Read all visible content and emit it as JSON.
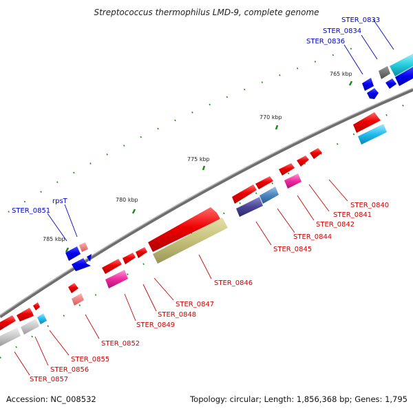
{
  "title": "Streptococcus thermophilus LMD-9, complete genome",
  "footer": {
    "accession": "Accession: NC_008532",
    "summary": "Topology: circular; Length: 1,856,368 bp; Genes: 1,795"
  },
  "colors": {
    "backbone": "#8a8a8a",
    "label_red": "#cc0000",
    "label_blue": "#0000cc",
    "tick": "#1a8a1a"
  },
  "scale_labels": [
    "765 kbp",
    "770 kbp",
    "775 kbp",
    "780 kbp",
    "785 kbp"
  ],
  "gene_labels": {
    "blue": [
      "STER_0833",
      "STER_0834",
      "STER_0836",
      "rpsT",
      "STER_0851"
    ],
    "red": [
      "STER_0840",
      "STER_0841",
      "STER_0842",
      "STER_0844",
      "STER_0845",
      "STER_0846",
      "STER_0847",
      "STER_0848",
      "STER_0849",
      "STER_0852",
      "STER_0855",
      "STER_0856",
      "STER_0857"
    ]
  }
}
